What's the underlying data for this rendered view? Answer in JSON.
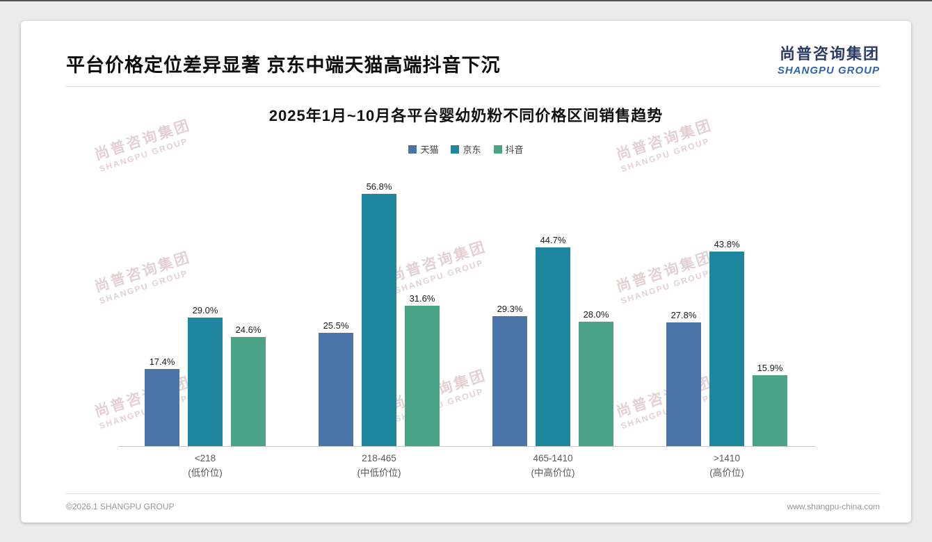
{
  "slide": {
    "title": "平台价格定位差异显著 京东中端天猫高端抖音下沉",
    "logo": {
      "cn": "尚普咨询集团",
      "en": "SHANGPU GROUP"
    },
    "footer": {
      "left": "©2026.1 SHANGPU GROUP",
      "right": "www.shangpu-china.com"
    },
    "watermark": {
      "line1": "尚普咨询集团",
      "line2": "SHANGPU GROUP"
    }
  },
  "chart_data": {
    "type": "bar",
    "title": "2025年1月~10月各平台婴幼奶粉不同价格区间销售趋势",
    "categories": [
      "<218",
      "218-465",
      "465-1410",
      ">1410"
    ],
    "category_sublabels": [
      "(低价位)",
      "(中低价位)",
      "(中高价位)",
      "(高价位)"
    ],
    "series": [
      {
        "name": "天猫",
        "color": "#4a73a8",
        "values": [
          17.4,
          25.5,
          29.3,
          27.8
        ]
      },
      {
        "name": "京东",
        "color": "#1f86a0",
        "values": [
          29.0,
          56.8,
          44.7,
          43.8
        ]
      },
      {
        "name": "抖音",
        "color": "#4aa287",
        "values": [
          24.6,
          31.6,
          28.0,
          15.9
        ]
      }
    ],
    "value_suffix": "%",
    "ylim": [
      0,
      61
    ],
    "legend_position": "top",
    "grid": false
  }
}
